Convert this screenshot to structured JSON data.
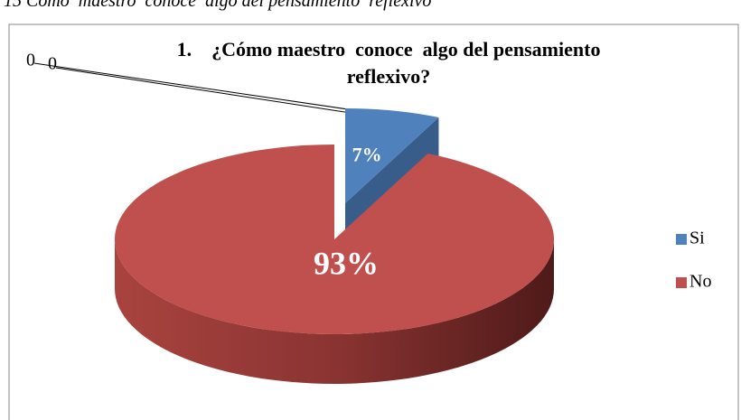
{
  "caption": "15 Cómo  maestro  conoce  algo del pensamiento  reflexivo",
  "chart_data": {
    "type": "pie",
    "title": "1.    ¿Cómo maestro  conoce  algo del pensamiento reflexivo?",
    "categories": [
      "Si",
      "No"
    ],
    "values": [
      7,
      93
    ],
    "value_labels": [
      "7%",
      "93%"
    ],
    "colors": [
      "#4f81bd",
      "#c0504d"
    ],
    "annotations": [
      "0",
      "0"
    ],
    "legend": "right"
  }
}
